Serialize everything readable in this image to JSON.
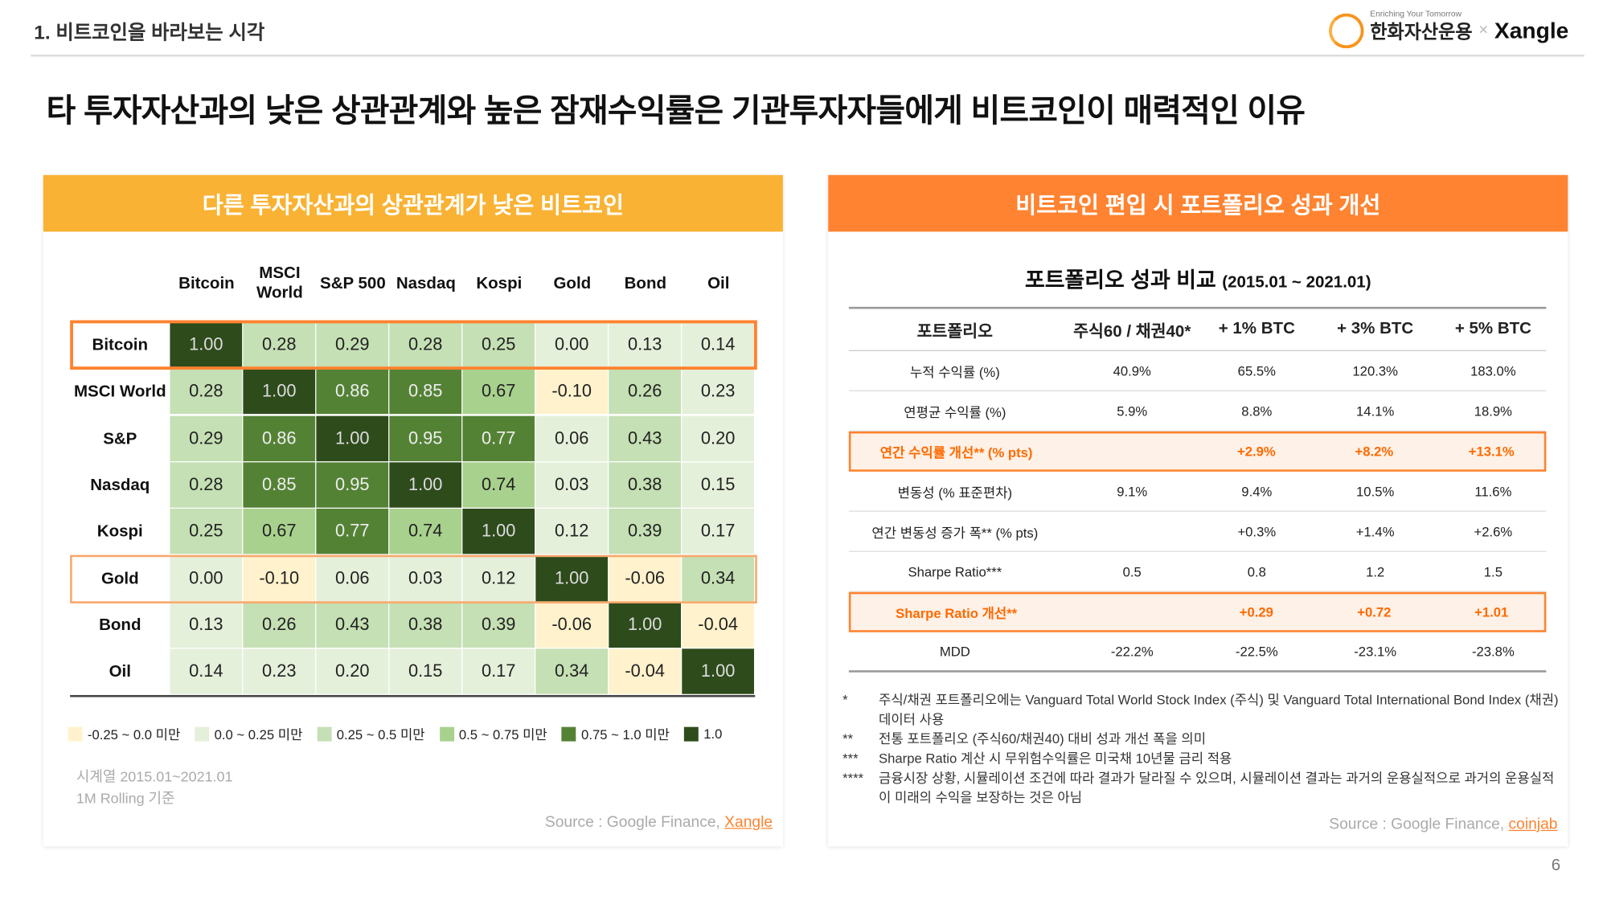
{
  "header": {
    "section": "1. 비트코인을 바라보는 시각",
    "logo_tagline": "Enriching Your Tomorrow",
    "logo_brand": "한화자산운용",
    "logo_x": "×",
    "logo_partner": "Xangle"
  },
  "title": "타 투자자산과의 낮은 상관관계와 높은 잠재수익률은 기관투자자들에게 비트코인이 매력적인 이유",
  "left_panel": {
    "header": "다른 투자자산과의 상관관계가 낮은 비트코인",
    "columns": [
      "Bitcoin",
      "MSCI World",
      "S&P 500",
      "Nasdaq",
      "Kospi",
      "Gold",
      "Bond",
      "Oil"
    ],
    "rows": [
      "Bitcoin",
      "MSCI World",
      "S&P",
      "Nasdaq",
      "Kospi",
      "Gold",
      "Bond",
      "Oil"
    ],
    "values": [
      [
        "1.00",
        "0.28",
        "0.29",
        "0.28",
        "0.25",
        "0.00",
        "0.13",
        "0.14"
      ],
      [
        "0.28",
        "1.00",
        "0.86",
        "0.85",
        "0.67",
        "-0.10",
        "0.26",
        "0.23"
      ],
      [
        "0.29",
        "0.86",
        "1.00",
        "0.95",
        "0.77",
        "0.06",
        "0.43",
        "0.20"
      ],
      [
        "0.28",
        "0.85",
        "0.95",
        "1.00",
        "0.74",
        "0.03",
        "0.38",
        "0.15"
      ],
      [
        "0.25",
        "0.67",
        "0.77",
        "0.74",
        "1.00",
        "0.12",
        "0.39",
        "0.17"
      ],
      [
        "0.00",
        "-0.10",
        "0.06",
        "0.03",
        "0.12",
        "1.00",
        "-0.06",
        "0.34"
      ],
      [
        "0.13",
        "0.26",
        "0.43",
        "0.38",
        "0.39",
        "-0.06",
        "1.00",
        "-0.04"
      ],
      [
        "0.14",
        "0.23",
        "0.20",
        "0.15",
        "0.17",
        "0.34",
        "-0.04",
        "1.00"
      ]
    ],
    "legend": [
      {
        "label": "-0.25 ~ 0.0 미만",
        "color": "#FFF2CC"
      },
      {
        "label": "0.0 ~ 0.25 미만",
        "color": "#E5F0DB"
      },
      {
        "label": "0.25 ~ 0.5 미만",
        "color": "#C5E0B4"
      },
      {
        "label": "0.5 ~ 0.75 미만",
        "color": "#A9D18E"
      },
      {
        "label": "0.75 ~ 1.0 미만",
        "color": "#548235"
      },
      {
        "label": "1.0",
        "color": "#2E4B1C"
      }
    ],
    "note_line1": "시계열 2015.01~2021.01",
    "note_line2": "1M Rolling 기준",
    "source_prefix": "Source : Google Finance, ",
    "source_link": "Xangle"
  },
  "right_panel": {
    "header": "비트코인 편입 시 포트폴리오 성과 개선",
    "table_title": "포트폴리오 성과 비교",
    "table_period": "(2015.01 ~ 2021.01)",
    "columns": [
      "포트폴리오",
      "주식60 / 채권40*",
      "+ 1% BTC",
      "+ 3% BTC",
      "+ 5% BTC"
    ],
    "rows": [
      {
        "cells": [
          "누적 수익률 (%)",
          "40.9%",
          "65.5%",
          "120.3%",
          "183.0%"
        ],
        "highlight": false
      },
      {
        "cells": [
          "연평균 수익률 (%)",
          "5.9%",
          "8.8%",
          "14.1%",
          "18.9%"
        ],
        "highlight": false
      },
      {
        "cells": [
          "연간 수익률 개선** (% pts)",
          "",
          "+2.9%",
          "+8.2%",
          "+13.1%"
        ],
        "highlight": true
      },
      {
        "cells": [
          "변동성 (% 표준편차)",
          "9.1%",
          "9.4%",
          "10.5%",
          "11.6%"
        ],
        "highlight": false
      },
      {
        "cells": [
          "연간 변동성 증가 폭** (% pts)",
          "",
          "+0.3%",
          "+1.4%",
          "+2.6%"
        ],
        "highlight": false
      },
      {
        "cells": [
          "Sharpe Ratio***",
          "0.5",
          "0.8",
          "1.2",
          "1.5"
        ],
        "highlight": false
      },
      {
        "cells": [
          "Sharpe Ratio 개선**",
          "",
          "+0.29",
          "+0.72",
          "+1.01"
        ],
        "highlight": true
      },
      {
        "cells": [
          "MDD",
          "-22.2%",
          "-22.5%",
          "-23.1%",
          "-23.8%"
        ],
        "highlight": false
      }
    ],
    "footnotes": [
      {
        "mark": "*",
        "text": "주식/채권 포트폴리오에는 Vanguard Total World Stock Index (주식) 및 Vanguard Total International Bond Index (채권) 데이터 사용"
      },
      {
        "mark": "**",
        "text": "전통 포트폴리오 (주식60/채권40) 대비 성과 개선 폭을 의미"
      },
      {
        "mark": "***",
        "text": "Sharpe Ratio 계산 시 무위험수익률은 미국채 10년물 금리 적용"
      },
      {
        "mark": "****",
        "text": "금융시장 상황, 시뮬레이션 조건에 따라 결과가 달라질 수 있으며, 시뮬레이션 결과는 과거의 운용실적으로 과거의 운용실적이 미래의 수익을 보장하는 것은 아님"
      }
    ],
    "source_prefix": "Source : Google Finance, ",
    "source_link": "coinjab"
  },
  "page_number": "6"
}
